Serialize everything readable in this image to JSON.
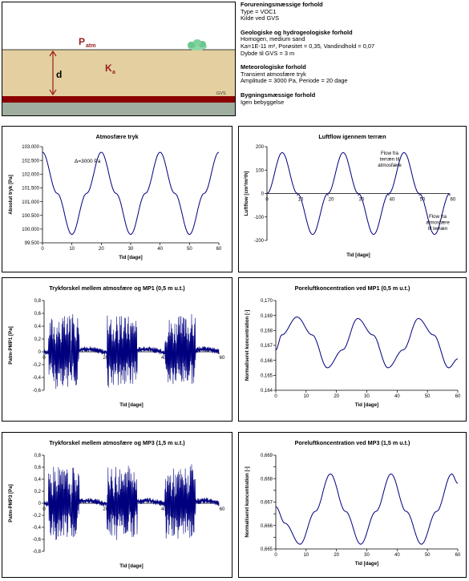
{
  "diagram": {
    "patm_label": "P",
    "patm_sub": "atm",
    "ka_label": "K",
    "ka_sub": "a",
    "d_label": "d",
    "gvs_label": "GVS"
  },
  "info": {
    "forurening_title": "Forureningsmæssige forhold",
    "forurening_lines": [
      "Type = VOC1",
      "Kilde ved GVS"
    ],
    "geologi_title": "Geologiske og hydrogeologiske forhold",
    "geologi_lines": [
      "Homogen, medium sand",
      "Ka=1E-11 m², Porøsitet = 0,35, Vandindhold = 0,07",
      "Dybde til GVS = 3 m"
    ],
    "meteo_title": "Meteorologiske forhold",
    "meteo_lines": [
      "Transient atmosfære tryk",
      "Amplitude = 3000 Pa, Periode = 20 dage"
    ],
    "bygning_title": "Bygningsmæssige forhold",
    "bygning_lines": [
      "Igen bebyggelse"
    ]
  },
  "colors": {
    "line": "#00007f",
    "sand": "#e3cf9f",
    "red_layer": "#8b0000",
    "ground": "#9fae9e",
    "label_red": "#9a1e1e"
  },
  "chart_data": [
    {
      "type": "line",
      "title": "Atmosfære tryk",
      "xlabel": "Tid [dage]",
      "ylabel": "Absolut tryk [Pa]",
      "xlim": [
        0,
        60
      ],
      "ylim": [
        99500,
        103000
      ],
      "xticks": [
        0,
        10,
        20,
        30,
        40,
        50,
        60
      ],
      "yticks": [
        99500,
        100000,
        100500,
        101000,
        101500,
        102000,
        102500,
        103000
      ],
      "ytick_labels": [
        "99.500",
        "100.000",
        "100.500",
        "101.000",
        "101.500",
        "102.000",
        "102.500",
        "103.000"
      ],
      "annotations": [
        "Δ=3000 Pa"
      ],
      "series": [
        {
          "x": [
            0,
            5,
            10,
            15,
            20,
            25,
            30,
            35,
            40,
            45,
            50,
            55,
            60
          ],
          "y": [
            102800,
            101300,
            99800,
            101300,
            102800,
            101300,
            99800,
            101300,
            102800,
            101300,
            99800,
            101300,
            102800
          ]
        }
      ]
    },
    {
      "type": "line",
      "title": "Luftflow igennem terræn",
      "xlabel": "Tid [dage]",
      "ylabel": "Luftflow [cm³/m²/h]",
      "xlim": [
        0,
        60
      ],
      "ylim": [
        -200,
        200
      ],
      "xticks": [
        0,
        10,
        20,
        30,
        40,
        50,
        60
      ],
      "yticks": [
        -200,
        -100,
        0,
        100,
        200
      ],
      "annotations": [
        "Flow fra terræn til atmosfære",
        "Flow fra atmosfære til terræn"
      ],
      "series": [
        {
          "x": [
            0,
            5,
            10,
            15,
            20,
            25,
            30,
            35,
            40,
            45,
            50,
            55,
            60
          ],
          "y": [
            0,
            175,
            0,
            -175,
            0,
            175,
            0,
            -175,
            0,
            175,
            0,
            -175,
            0
          ]
        }
      ]
    },
    {
      "type": "line",
      "title": "Trykforskel mellem atmosfære og MP1 (0,5 m u.t.)",
      "xlabel": "Tid [dage]",
      "ylabel": "Patm-PMP1 [Pa]",
      "xlim": [
        0,
        60
      ],
      "ylim": [
        -0.6,
        0.8
      ],
      "xticks": [
        0,
        20,
        40,
        60
      ],
      "yticks": [
        -0.6,
        -0.4,
        -0.2,
        0,
        0.2,
        0.4,
        0.6,
        0.8
      ],
      "ytick_labels": [
        "-0,6",
        "-0,4",
        "-0,2",
        "0",
        "0,2",
        "0,4",
        "0,6",
        "0,8"
      ],
      "series": [
        {
          "x": [
            0,
            5,
            10,
            15,
            20,
            25,
            30,
            35,
            40,
            45,
            50,
            55,
            60
          ],
          "y": [
            0.05,
            0.45,
            -0.48,
            0.02,
            0.03,
            0.46,
            -0.45,
            0.0,
            0.03,
            0.48,
            -0.45,
            0.05,
            0.0
          ]
        }
      ]
    },
    {
      "type": "line",
      "title": "Poreluftkoncentration ved MP1 (0,5 m u.t.)",
      "xlabel": "Tid [dage]",
      "ylabel": "Normaliseret koncentration [-]",
      "xlim": [
        0,
        60
      ],
      "ylim": [
        0.164,
        0.17
      ],
      "xticks": [
        0,
        10,
        20,
        30,
        40,
        50,
        60
      ],
      "yticks": [
        0.164,
        0.165,
        0.166,
        0.167,
        0.168,
        0.169,
        0.17
      ],
      "ytick_labels": [
        "0,164",
        "0,165",
        "0,166",
        "0,167",
        "0,168",
        "0,169",
        "0,170"
      ],
      "series": [
        {
          "x": [
            0,
            2,
            7,
            12,
            17,
            22,
            27,
            32,
            37,
            42,
            47,
            52,
            57,
            60
          ],
          "y": [
            0.1667,
            0.1677,
            0.1689,
            0.1677,
            0.1655,
            0.1667,
            0.1688,
            0.1677,
            0.1655,
            0.1667,
            0.1688,
            0.1677,
            0.1655,
            0.1661
          ]
        }
      ]
    },
    {
      "type": "line",
      "title": "Trykforskel mellem atmosfære og MP3 (1,5 m u.t.)",
      "xlabel": "Tid [dage]",
      "ylabel": "Patm-PMP3 [Pa]",
      "xlim": [
        0,
        60
      ],
      "ylim": [
        -0.8,
        0.8
      ],
      "xticks": [
        0,
        20,
        40,
        60
      ],
      "yticks": [
        -0.8,
        -0.6,
        -0.4,
        -0.2,
        0,
        0.2,
        0.4,
        0.6,
        0.8
      ],
      "ytick_labels": [
        "-0,8",
        "-0,6",
        "-0,4",
        "-0,2",
        "0",
        "0,2",
        "0,4",
        "0,6",
        "0,8"
      ],
      "series": [
        {
          "x": [
            0,
            5,
            10,
            15,
            20,
            25,
            30,
            35,
            40,
            45,
            50,
            55,
            60
          ],
          "y": [
            0.1,
            0.5,
            -0.5,
            -0.1,
            0.05,
            0.55,
            -0.55,
            -0.1,
            0.05,
            0.6,
            -0.5,
            -0.1,
            0.05
          ]
        }
      ]
    },
    {
      "type": "line",
      "title": "Poreluftkoncentration ved MP3 (1,5 m u.t.)",
      "xlabel": "Tid [dage]",
      "ylabel": "Normaliseret koncentration [-]",
      "xlim": [
        0,
        60
      ],
      "ylim": [
        0.665,
        0.669
      ],
      "xticks": [
        0,
        10,
        20,
        30,
        40,
        50,
        60
      ],
      "yticks": [
        0.665,
        0.6655,
        0.666,
        0.6665,
        0.667,
        0.6675,
        0.668,
        0.6685,
        0.669
      ],
      "ytick_labels": [
        "0,665",
        "",
        "0,666",
        "",
        "0,667",
        "",
        "0,668",
        "",
        "0,669"
      ],
      "series": [
        {
          "x": [
            0,
            3,
            8,
            13,
            18,
            23,
            28,
            33,
            38,
            43,
            48,
            53,
            58,
            60
          ],
          "y": [
            0.6668,
            0.6661,
            0.6652,
            0.6666,
            0.6682,
            0.6666,
            0.6652,
            0.6666,
            0.6682,
            0.6666,
            0.6652,
            0.6666,
            0.6682,
            0.6678
          ]
        }
      ]
    }
  ]
}
